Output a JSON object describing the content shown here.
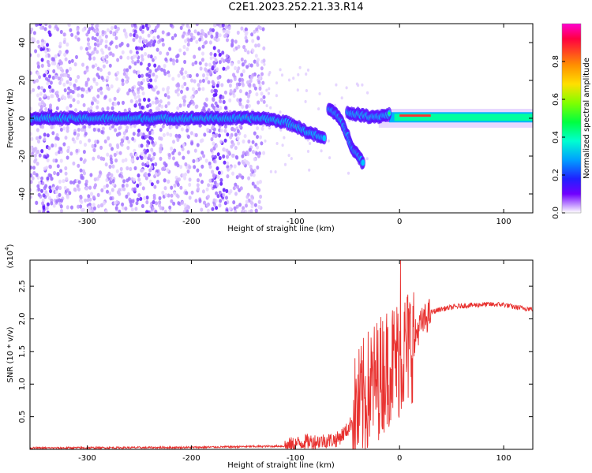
{
  "title": "C2E1.2023.252.21.33.R14",
  "colors": {
    "snr_line": "#e8312f",
    "axis": "#000000",
    "spectrum_core": "#00d8ff",
    "colorbar": [
      "#ff00ff",
      "#ff0000",
      "#ffa000",
      "#ffff00",
      "#00ff00",
      "#00e0ff",
      "#0060ff",
      "#3000ff",
      "#ffffff"
    ]
  },
  "chart_data": [
    {
      "type": "heatmap",
      "name": "spectrogram",
      "xlabel": "Height of straight line (km)",
      "ylabel": "Frequency (Hz)",
      "xlim": [
        -355,
        128
      ],
      "ylim": [
        -50,
        50
      ],
      "xticks": [
        -300,
        -200,
        -100,
        0,
        100
      ],
      "yticks": [
        -40,
        -20,
        0,
        20,
        40
      ],
      "colorbar": {
        "label": "Normalized spectral amplitude",
        "range": [
          0,
          1
        ],
        "ticks": [
          "0.0",
          "0.2",
          "0.4",
          "0.6",
          "0.8"
        ]
      },
      "carrier_track": [
        {
          "x": -355,
          "y": 0
        },
        {
          "x": -300,
          "y": 0
        },
        {
          "x": -200,
          "y": 0
        },
        {
          "x": -130,
          "y": 0
        },
        {
          "x": -120,
          "y": -1
        },
        {
          "x": -110,
          "y": -2
        },
        {
          "x": -100,
          "y": -4
        },
        {
          "x": -90,
          "y": -7
        },
        {
          "x": -80,
          "y": -9
        },
        {
          "x": -72,
          "y": -11
        }
      ],
      "branch_track": [
        {
          "x": -68,
          "y": 5
        },
        {
          "x": -60,
          "y": 2
        },
        {
          "x": -55,
          "y": -3
        },
        {
          "x": -50,
          "y": -9
        },
        {
          "x": -45,
          "y": -16
        },
        {
          "x": -38,
          "y": -21
        },
        {
          "x": -35,
          "y": -24
        }
      ],
      "upper_track": [
        {
          "x": -50,
          "y": 3
        },
        {
          "x": -40,
          "y": 2
        },
        {
          "x": -30,
          "y": 1
        },
        {
          "x": -20,
          "y": 1
        },
        {
          "x": -10,
          "y": 2
        },
        {
          "x": 0,
          "y": 1.5
        },
        {
          "x": 20,
          "y": 1
        },
        {
          "x": 60,
          "y": 0.5
        },
        {
          "x": 128,
          "y": 0.5
        }
      ]
    },
    {
      "type": "line",
      "name": "snr",
      "xlabel": "Height of straight line (km)",
      "ylabel": "SNR (10 * v/v)",
      "yscale_label": "(x10",
      "yscale_exp": "4",
      "xlim": [
        -355,
        128
      ],
      "ylim": [
        0,
        2.9
      ],
      "xticks": [
        -300,
        -200,
        -100,
        0,
        100
      ],
      "yticks": [
        "0.5",
        "1.0",
        "1.5",
        "2.0",
        "2.5"
      ],
      "trend": [
        {
          "x": -355,
          "y": 0.02
        },
        {
          "x": -200,
          "y": 0.03
        },
        {
          "x": -110,
          "y": 0.05
        },
        {
          "x": -100,
          "y": 0.08
        },
        {
          "x": -90,
          "y": 0.12
        },
        {
          "x": -80,
          "y": 0.12
        },
        {
          "x": -60,
          "y": 0.15
        },
        {
          "x": -50,
          "y": 0.3
        },
        {
          "x": -40,
          "y": 0.6
        },
        {
          "x": -30,
          "y": 0.9
        },
        {
          "x": -20,
          "y": 1.1
        },
        {
          "x": -10,
          "y": 1.3
        },
        {
          "x": 0,
          "y": 1.4
        },
        {
          "x": 10,
          "y": 1.6
        },
        {
          "x": 20,
          "y": 1.9
        },
        {
          "x": 30,
          "y": 2.1
        },
        {
          "x": 40,
          "y": 2.15
        },
        {
          "x": 60,
          "y": 2.2
        },
        {
          "x": 80,
          "y": 2.22
        },
        {
          "x": 100,
          "y": 2.22
        },
        {
          "x": 110,
          "y": 2.18
        },
        {
          "x": 128,
          "y": 2.15
        }
      ],
      "peak": {
        "x": 1,
        "y": 2.9
      }
    }
  ]
}
